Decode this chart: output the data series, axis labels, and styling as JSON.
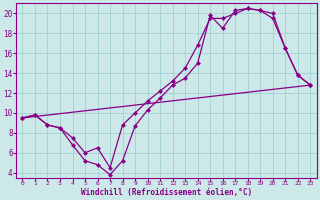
{
  "xlabel": "Windchill (Refroidissement éolien,°C)",
  "bg_color": "#cde8e8",
  "line_color": "#880088",
  "grid_color": "#99cccc",
  "xlim": [
    -0.5,
    23.5
  ],
  "ylim": [
    3.5,
    21.0
  ],
  "xticks": [
    0,
    1,
    2,
    3,
    4,
    5,
    6,
    7,
    8,
    9,
    10,
    11,
    12,
    13,
    14,
    15,
    16,
    17,
    18,
    19,
    20,
    21,
    22,
    23
  ],
  "yticks": [
    4,
    6,
    8,
    10,
    12,
    14,
    16,
    18,
    20
  ],
  "curve1_x": [
    0,
    1,
    2,
    3,
    4,
    5,
    6,
    7,
    8,
    9,
    10,
    11,
    12,
    13,
    14,
    15,
    16,
    17,
    18,
    19,
    20,
    21,
    22,
    23
  ],
  "curve1_y": [
    9.5,
    9.8,
    8.8,
    8.5,
    6.8,
    5.2,
    4.8,
    3.8,
    5.2,
    8.7,
    10.3,
    11.5,
    12.8,
    13.5,
    15.0,
    19.8,
    18.5,
    20.3,
    20.5,
    20.3,
    19.5,
    16.5,
    13.8,
    12.8
  ],
  "curve2_x": [
    0,
    1,
    2,
    3,
    4,
    5,
    6,
    7,
    8,
    9,
    10,
    11,
    12,
    13,
    14,
    15,
    16,
    17,
    18,
    19,
    20,
    21,
    22,
    23
  ],
  "curve2_y": [
    9.5,
    9.8,
    8.8,
    8.5,
    7.5,
    6.0,
    6.5,
    4.5,
    8.8,
    10.0,
    11.2,
    12.2,
    13.2,
    14.5,
    16.8,
    19.5,
    19.5,
    20.0,
    20.5,
    20.3,
    20.0,
    16.5,
    13.8,
    12.8
  ],
  "curve3_x": [
    0,
    23
  ],
  "curve3_y": [
    9.5,
    12.8
  ],
  "markersize": 2.5,
  "linewidth": 0.9
}
